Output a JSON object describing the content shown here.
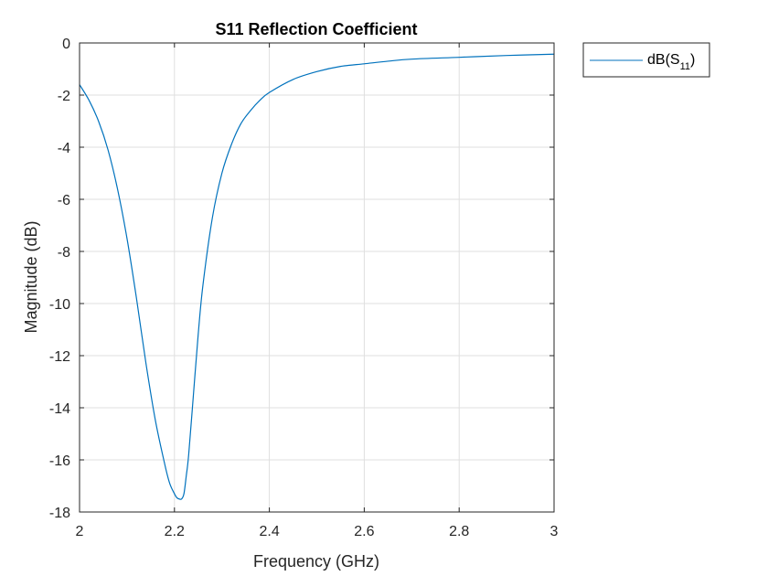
{
  "chart_data": {
    "type": "line",
    "title": "S11 Reflection Coefficient",
    "xlabel": "Frequency (GHz)",
    "ylabel": "Magnitude (dB)",
    "xlim": [
      2,
      3
    ],
    "ylim": [
      -18,
      0
    ],
    "xticks": [
      2,
      2.2,
      2.4,
      2.6,
      2.8,
      3
    ],
    "xtick_labels": [
      "2",
      "2.2",
      "2.4",
      "2.6",
      "2.8",
      "3"
    ],
    "yticks": [
      0,
      -2,
      -4,
      -6,
      -8,
      -10,
      -12,
      -14,
      -16,
      -18
    ],
    "ytick_labels": [
      "0",
      "-2",
      "-4",
      "-6",
      "-8",
      "-10",
      "-12",
      "-14",
      "-16",
      "-18"
    ],
    "grid": true,
    "legend_position": "outside-top-right",
    "series": [
      {
        "name": "dB(S11)",
        "legend_base": "dB(S",
        "legend_sub": "11",
        "legend_close": ")",
        "color": "#0072BD",
        "x": [
          2.0,
          2.02,
          2.04,
          2.06,
          2.08,
          2.1,
          2.12,
          2.14,
          2.16,
          2.18,
          2.19,
          2.2,
          2.205,
          2.21,
          2.215,
          2.22,
          2.225,
          2.23,
          2.24,
          2.25,
          2.26,
          2.28,
          2.3,
          2.32,
          2.34,
          2.36,
          2.38,
          2.4,
          2.45,
          2.5,
          2.55,
          2.6,
          2.65,
          2.7,
          2.8,
          2.9,
          3.0
        ],
        "y": [
          -1.6,
          -2.2,
          -3.0,
          -4.1,
          -5.6,
          -7.5,
          -9.8,
          -12.3,
          -14.5,
          -16.2,
          -16.9,
          -17.3,
          -17.45,
          -17.5,
          -17.5,
          -17.3,
          -16.6,
          -15.8,
          -13.5,
          -11.2,
          -9.3,
          -6.7,
          -5.0,
          -3.9,
          -3.1,
          -2.6,
          -2.2,
          -1.9,
          -1.4,
          -1.1,
          -0.9,
          -0.8,
          -0.7,
          -0.62,
          -0.55,
          -0.48,
          -0.43
        ]
      }
    ]
  }
}
